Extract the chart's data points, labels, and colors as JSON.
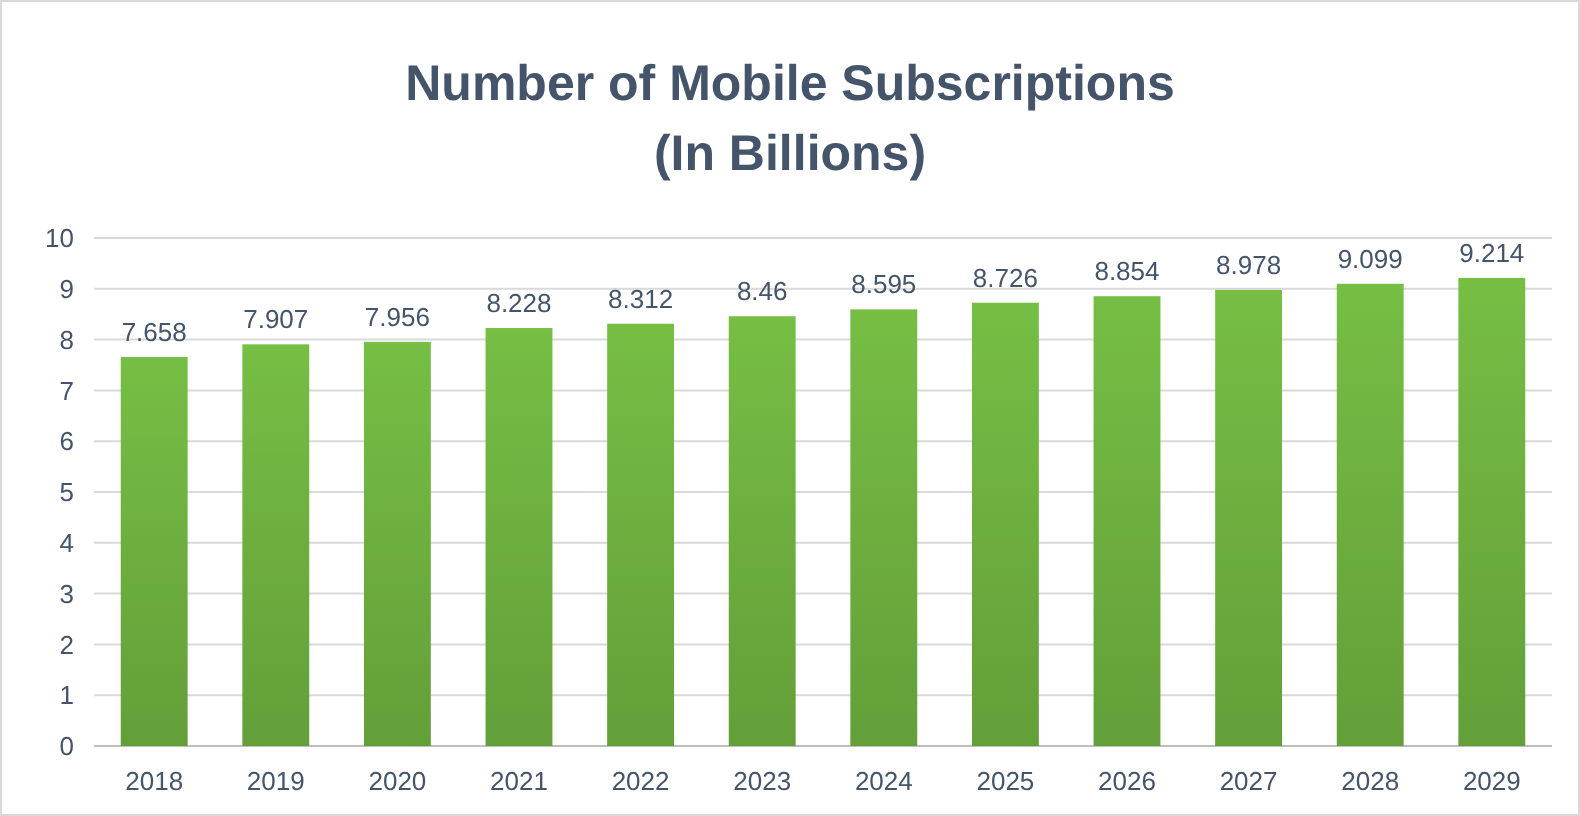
{
  "chart_data": {
    "type": "bar",
    "title": "Number of Mobile Subscriptions\n(In Billions)",
    "categories": [
      "2018",
      "2019",
      "2020",
      "2021",
      "2022",
      "2023",
      "2024",
      "2025",
      "2026",
      "2027",
      "2028",
      "2029"
    ],
    "values": [
      7.658,
      7.907,
      7.956,
      8.228,
      8.312,
      8.46,
      8.595,
      8.726,
      8.854,
      8.978,
      9.099,
      9.214
    ],
    "color": "#6aab3d",
    "ylim": [
      0,
      10
    ],
    "yticks": [
      0,
      1,
      2,
      3,
      4,
      5,
      6,
      7,
      8,
      9,
      10
    ],
    "grid": "y",
    "data_labels": true
  }
}
